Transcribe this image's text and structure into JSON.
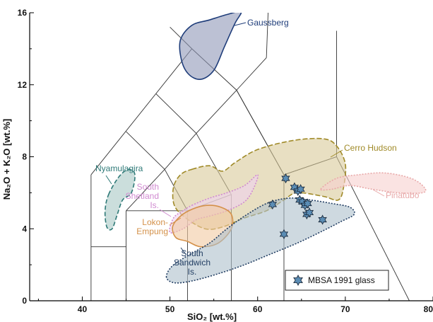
{
  "chart_data": {
    "type": "scatter",
    "xlabel": "SiO₂ [wt.%]",
    "ylabel": "Na₂O + K₂O [wt.%]",
    "xlim": [
      34,
      80
    ],
    "ylim": [
      0,
      16
    ],
    "x_ticks": [
      40,
      50,
      60,
      70,
      80
    ],
    "x_tick_labels": [
      "40",
      "50",
      "60",
      "70",
      "80"
    ],
    "y_ticks": [
      0,
      4,
      8,
      12,
      16
    ],
    "y_tick_labels": [
      "0",
      "4",
      "8",
      "12",
      "16"
    ],
    "grid": false,
    "legend": {
      "placement": "bottom-right",
      "entries": [
        {
          "name": "MBSA 1991 glass",
          "marker": "star",
          "color": "#5b8db5"
        }
      ]
    },
    "series": [
      {
        "name": "MBSA 1991 glass",
        "points": [
          [
            63.2,
            6.8
          ],
          [
            64.2,
            6.3
          ],
          [
            64.6,
            6.1
          ],
          [
            64.9,
            6.2
          ],
          [
            64.8,
            5.6
          ],
          [
            65.1,
            5.5
          ],
          [
            65.4,
            5.3
          ],
          [
            65.7,
            5.4
          ],
          [
            65.6,
            4.8
          ],
          [
            65.9,
            4.9
          ],
          [
            61.7,
            5.35
          ],
          [
            63.0,
            3.7
          ],
          [
            67.4,
            4.5
          ]
        ]
      }
    ],
    "regions": [
      {
        "label_lines": [
          "Gaussberg"
        ],
        "color": "#1f3d7a",
        "fill": "#8f98b8",
        "outline": [
          [
            51.2,
            14.5
          ],
          [
            52.5,
            15.3
          ],
          [
            54.5,
            15.6
          ],
          [
            56.5,
            15.9
          ],
          [
            58.1,
            16.05
          ],
          [
            57.4,
            15.4
          ],
          [
            56.2,
            14.1
          ],
          [
            55.0,
            12.8
          ],
          [
            53.5,
            12.3
          ],
          [
            52.1,
            12.6
          ],
          [
            51.3,
            13.4
          ]
        ]
      },
      {
        "label_lines": [
          "Nyamulagira"
        ],
        "color": "#2f7a78",
        "fill": "#a8c8c4",
        "outline": [
          [
            43.0,
            5.9
          ],
          [
            44.2,
            6.9
          ],
          [
            45.3,
            7.3
          ],
          [
            46.0,
            7.0
          ],
          [
            45.6,
            6.0
          ],
          [
            44.6,
            5.6
          ],
          [
            44.0,
            4.8
          ],
          [
            43.4,
            4.0
          ],
          [
            42.8,
            4.1
          ],
          [
            42.6,
            5.0
          ]
        ]
      },
      {
        "label_lines": [
          "Cerro Hudson"
        ],
        "color": "#a08a28",
        "fill": "#d9c99a",
        "outline": [
          [
            52.5,
            7.3
          ],
          [
            54.5,
            7.5
          ],
          [
            56.0,
            7.2
          ],
          [
            57.5,
            7.7
          ],
          [
            60.0,
            8.4
          ],
          [
            64.0,
            8.9
          ],
          [
            67.5,
            9.0
          ],
          [
            69.0,
            8.6
          ],
          [
            70.0,
            7.6
          ],
          [
            69.8,
            6.3
          ],
          [
            69.2,
            5.6
          ],
          [
            67.5,
            5.8
          ],
          [
            64.5,
            6.0
          ],
          [
            63.0,
            5.6
          ],
          [
            61.0,
            5.0
          ],
          [
            58.5,
            4.6
          ],
          [
            56.0,
            4.1
          ],
          [
            54.0,
            4.0
          ],
          [
            51.8,
            4.6
          ],
          [
            50.5,
            5.3
          ],
          [
            50.4,
            6.3
          ],
          [
            51.2,
            7.0
          ]
        ]
      },
      {
        "label_lines": [
          "Pinatubo"
        ],
        "color": "#e8a8a8",
        "fill": "#f6d0cf",
        "outline": [
          [
            67.2,
            6.2
          ],
          [
            69.0,
            6.8
          ],
          [
            71.5,
            7.0
          ],
          [
            74.5,
            7.1
          ],
          [
            77.5,
            6.8
          ],
          [
            79.0,
            6.3
          ],
          [
            78.8,
            6.0
          ],
          [
            76.0,
            6.0
          ],
          [
            73.0,
            6.2
          ],
          [
            70.5,
            6.4
          ],
          [
            68.5,
            6.2
          ]
        ]
      },
      {
        "label_lines": [
          "South",
          "Shetland",
          "Is."
        ],
        "color": "#d08ad0",
        "fill": "#eed2ee",
        "outline": [
          [
            52.5,
            5.3
          ],
          [
            54.5,
            5.7
          ],
          [
            56.5,
            6.0
          ],
          [
            58.5,
            6.4
          ],
          [
            60.0,
            7.0
          ],
          [
            59.5,
            6.2
          ],
          [
            58.5,
            5.5
          ],
          [
            56.5,
            5.0
          ],
          [
            54.5,
            4.7
          ],
          [
            53.0,
            4.5
          ],
          [
            51.5,
            4.0
          ],
          [
            50.0,
            3.8
          ],
          [
            50.4,
            4.6
          ],
          [
            51.5,
            5.0
          ]
        ]
      },
      {
        "label_lines": [
          "Lokon-",
          "Empung"
        ],
        "color": "#d4914a",
        "fill": "#f2c9a2",
        "outline": [
          [
            52.0,
            3.3
          ],
          [
            53.5,
            3.0
          ],
          [
            55.5,
            3.2
          ],
          [
            57.0,
            4.0
          ],
          [
            57.0,
            4.8
          ],
          [
            55.8,
            5.2
          ],
          [
            54.2,
            5.3
          ],
          [
            52.6,
            5.1
          ],
          [
            51.2,
            4.7
          ],
          [
            50.3,
            4.1
          ],
          [
            50.7,
            3.5
          ]
        ]
      },
      {
        "label_lines": [
          "South",
          "Sandwich",
          "Is."
        ],
        "color": "#223e63",
        "fill": "#aebfcb",
        "outline": [
          [
            49.6,
            1.3
          ],
          [
            50.2,
            1.9
          ],
          [
            52.0,
            2.5
          ],
          [
            54.5,
            3.2
          ],
          [
            56.5,
            4.0
          ],
          [
            58.5,
            4.7
          ],
          [
            61.0,
            5.4
          ],
          [
            63.5,
            5.7
          ],
          [
            66.0,
            5.6
          ],
          [
            68.5,
            5.4
          ],
          [
            70.5,
            5.2
          ],
          [
            71.0,
            4.8
          ],
          [
            69.5,
            4.4
          ],
          [
            67.5,
            3.9
          ],
          [
            64.5,
            3.2
          ],
          [
            61.5,
            2.6
          ],
          [
            58.5,
            2.0
          ],
          [
            55.5,
            1.5
          ],
          [
            52.5,
            1.1
          ],
          [
            50.5,
            1.0
          ]
        ]
      }
    ]
  }
}
